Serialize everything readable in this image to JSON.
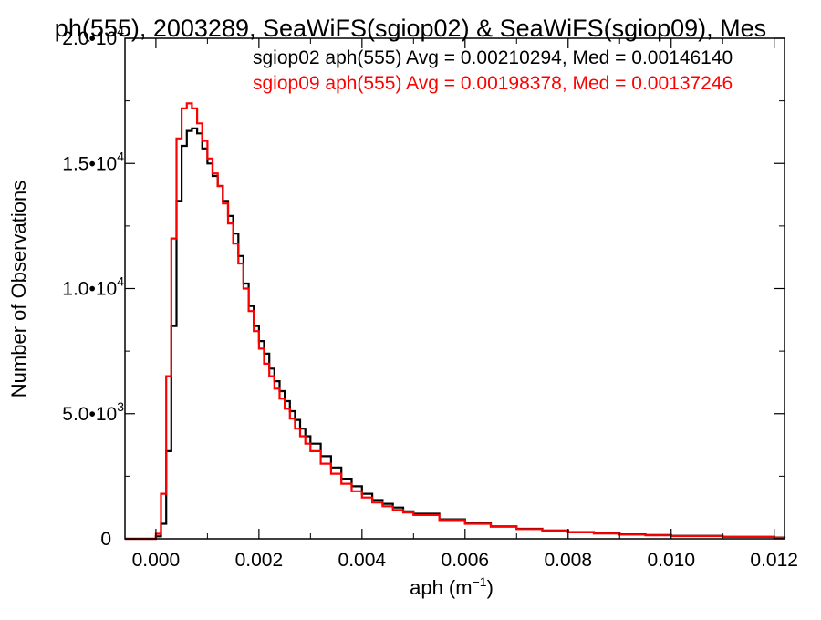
{
  "chart_data": {
    "type": "line",
    "title": "ph(555), 2003289, SeaWiFS(sgiop02) & SeaWiFS(sgiop09), Mes",
    "xlabel": "aph (m",
    "xlabel_sup": "−1",
    "xlabel_close": ")",
    "ylabel": "Number of Observations",
    "xlim": [
      -0.0006,
      0.0122
    ],
    "ylim": [
      0,
      20000
    ],
    "xticks": [
      {
        "v": 0.0,
        "label": "0.000"
      },
      {
        "v": 0.002,
        "label": "0.002"
      },
      {
        "v": 0.004,
        "label": "0.004"
      },
      {
        "v": 0.006,
        "label": "0.006"
      },
      {
        "v": 0.008,
        "label": "0.008"
      },
      {
        "v": 0.01,
        "label": "0.010"
      },
      {
        "v": 0.012,
        "label": "0.012"
      }
    ],
    "yticks": [
      {
        "v": 0,
        "base": "0",
        "exp": ""
      },
      {
        "v": 5000,
        "base": "5.0•10",
        "exp": "3"
      },
      {
        "v": 10000,
        "base": "1.0•10",
        "exp": "4"
      },
      {
        "v": 15000,
        "base": "1.5•10",
        "exp": "4"
      },
      {
        "v": 20000,
        "base": "2.0•10",
        "exp": "4"
      }
    ],
    "grid": false,
    "legend_position": "top-right",
    "series": [
      {
        "name": "sgiop02",
        "label": "sgiop02 aph(555) Avg = 0.00210294, Med = 0.00146140",
        "color": "#000000",
        "x": [
          -0.0006,
          -0.0001,
          0.0,
          0.0001,
          0.0002,
          0.0003,
          0.0004,
          0.0005,
          0.0006,
          0.0007,
          0.0008,
          0.0009,
          0.001,
          0.0011,
          0.0012,
          0.0013,
          0.0014,
          0.0015,
          0.0016,
          0.0017,
          0.0018,
          0.0019,
          0.002,
          0.0021,
          0.0022,
          0.0023,
          0.0024,
          0.0025,
          0.0026,
          0.0027,
          0.0028,
          0.0029,
          0.003,
          0.0032,
          0.0034,
          0.0036,
          0.0038,
          0.004,
          0.0042,
          0.0044,
          0.0046,
          0.0048,
          0.005,
          0.0055,
          0.006,
          0.0065,
          0.007,
          0.0075,
          0.008,
          0.0085,
          0.009,
          0.0095,
          0.01,
          0.011,
          0.012,
          0.0122
        ],
        "y": [
          0,
          0,
          100,
          600,
          3500,
          8500,
          13500,
          15700,
          16300,
          16400,
          16200,
          15600,
          15000,
          14500,
          14100,
          13500,
          12900,
          12200,
          11300,
          10200,
          9300,
          8500,
          7900,
          7400,
          6800,
          6300,
          5900,
          5500,
          5100,
          4750,
          4400,
          4100,
          3800,
          3300,
          2850,
          2400,
          2100,
          1800,
          1550,
          1400,
          1250,
          1100,
          1000,
          780,
          620,
          500,
          400,
          330,
          270,
          220,
          180,
          150,
          120,
          80,
          50,
          40
        ]
      },
      {
        "name": "sgiop09",
        "label": "sgiop09 aph(555) Avg = 0.00198378, Med = 0.00137246",
        "color": "#ff0000",
        "x": [
          -0.0006,
          -0.0001,
          0.0,
          0.0001,
          0.0002,
          0.0003,
          0.0004,
          0.0005,
          0.0006,
          0.0007,
          0.0008,
          0.0009,
          0.001,
          0.0011,
          0.0012,
          0.0013,
          0.0014,
          0.0015,
          0.0016,
          0.0017,
          0.0018,
          0.0019,
          0.002,
          0.0021,
          0.0022,
          0.0023,
          0.0024,
          0.0025,
          0.0026,
          0.0027,
          0.0028,
          0.0029,
          0.003,
          0.0032,
          0.0034,
          0.0036,
          0.0038,
          0.004,
          0.0042,
          0.0044,
          0.0046,
          0.0048,
          0.005,
          0.0055,
          0.006,
          0.0065,
          0.007,
          0.0075,
          0.008,
          0.0085,
          0.009,
          0.0095,
          0.01,
          0.011,
          0.012,
          0.0122
        ],
        "y": [
          0,
          0,
          200,
          1800,
          6500,
          12000,
          16000,
          17200,
          17400,
          17200,
          16600,
          15900,
          15200,
          14600,
          14100,
          13400,
          12600,
          11800,
          11000,
          10000,
          9100,
          8300,
          7600,
          7000,
          6500,
          6000,
          5600,
          5200,
          4800,
          4400,
          4100,
          3800,
          3500,
          3000,
          2600,
          2200,
          1900,
          1650,
          1450,
          1300,
          1150,
          1050,
          950,
          750,
          600,
          480,
          390,
          320,
          260,
          210,
          170,
          140,
          110,
          75,
          45,
          35
        ]
      }
    ]
  }
}
